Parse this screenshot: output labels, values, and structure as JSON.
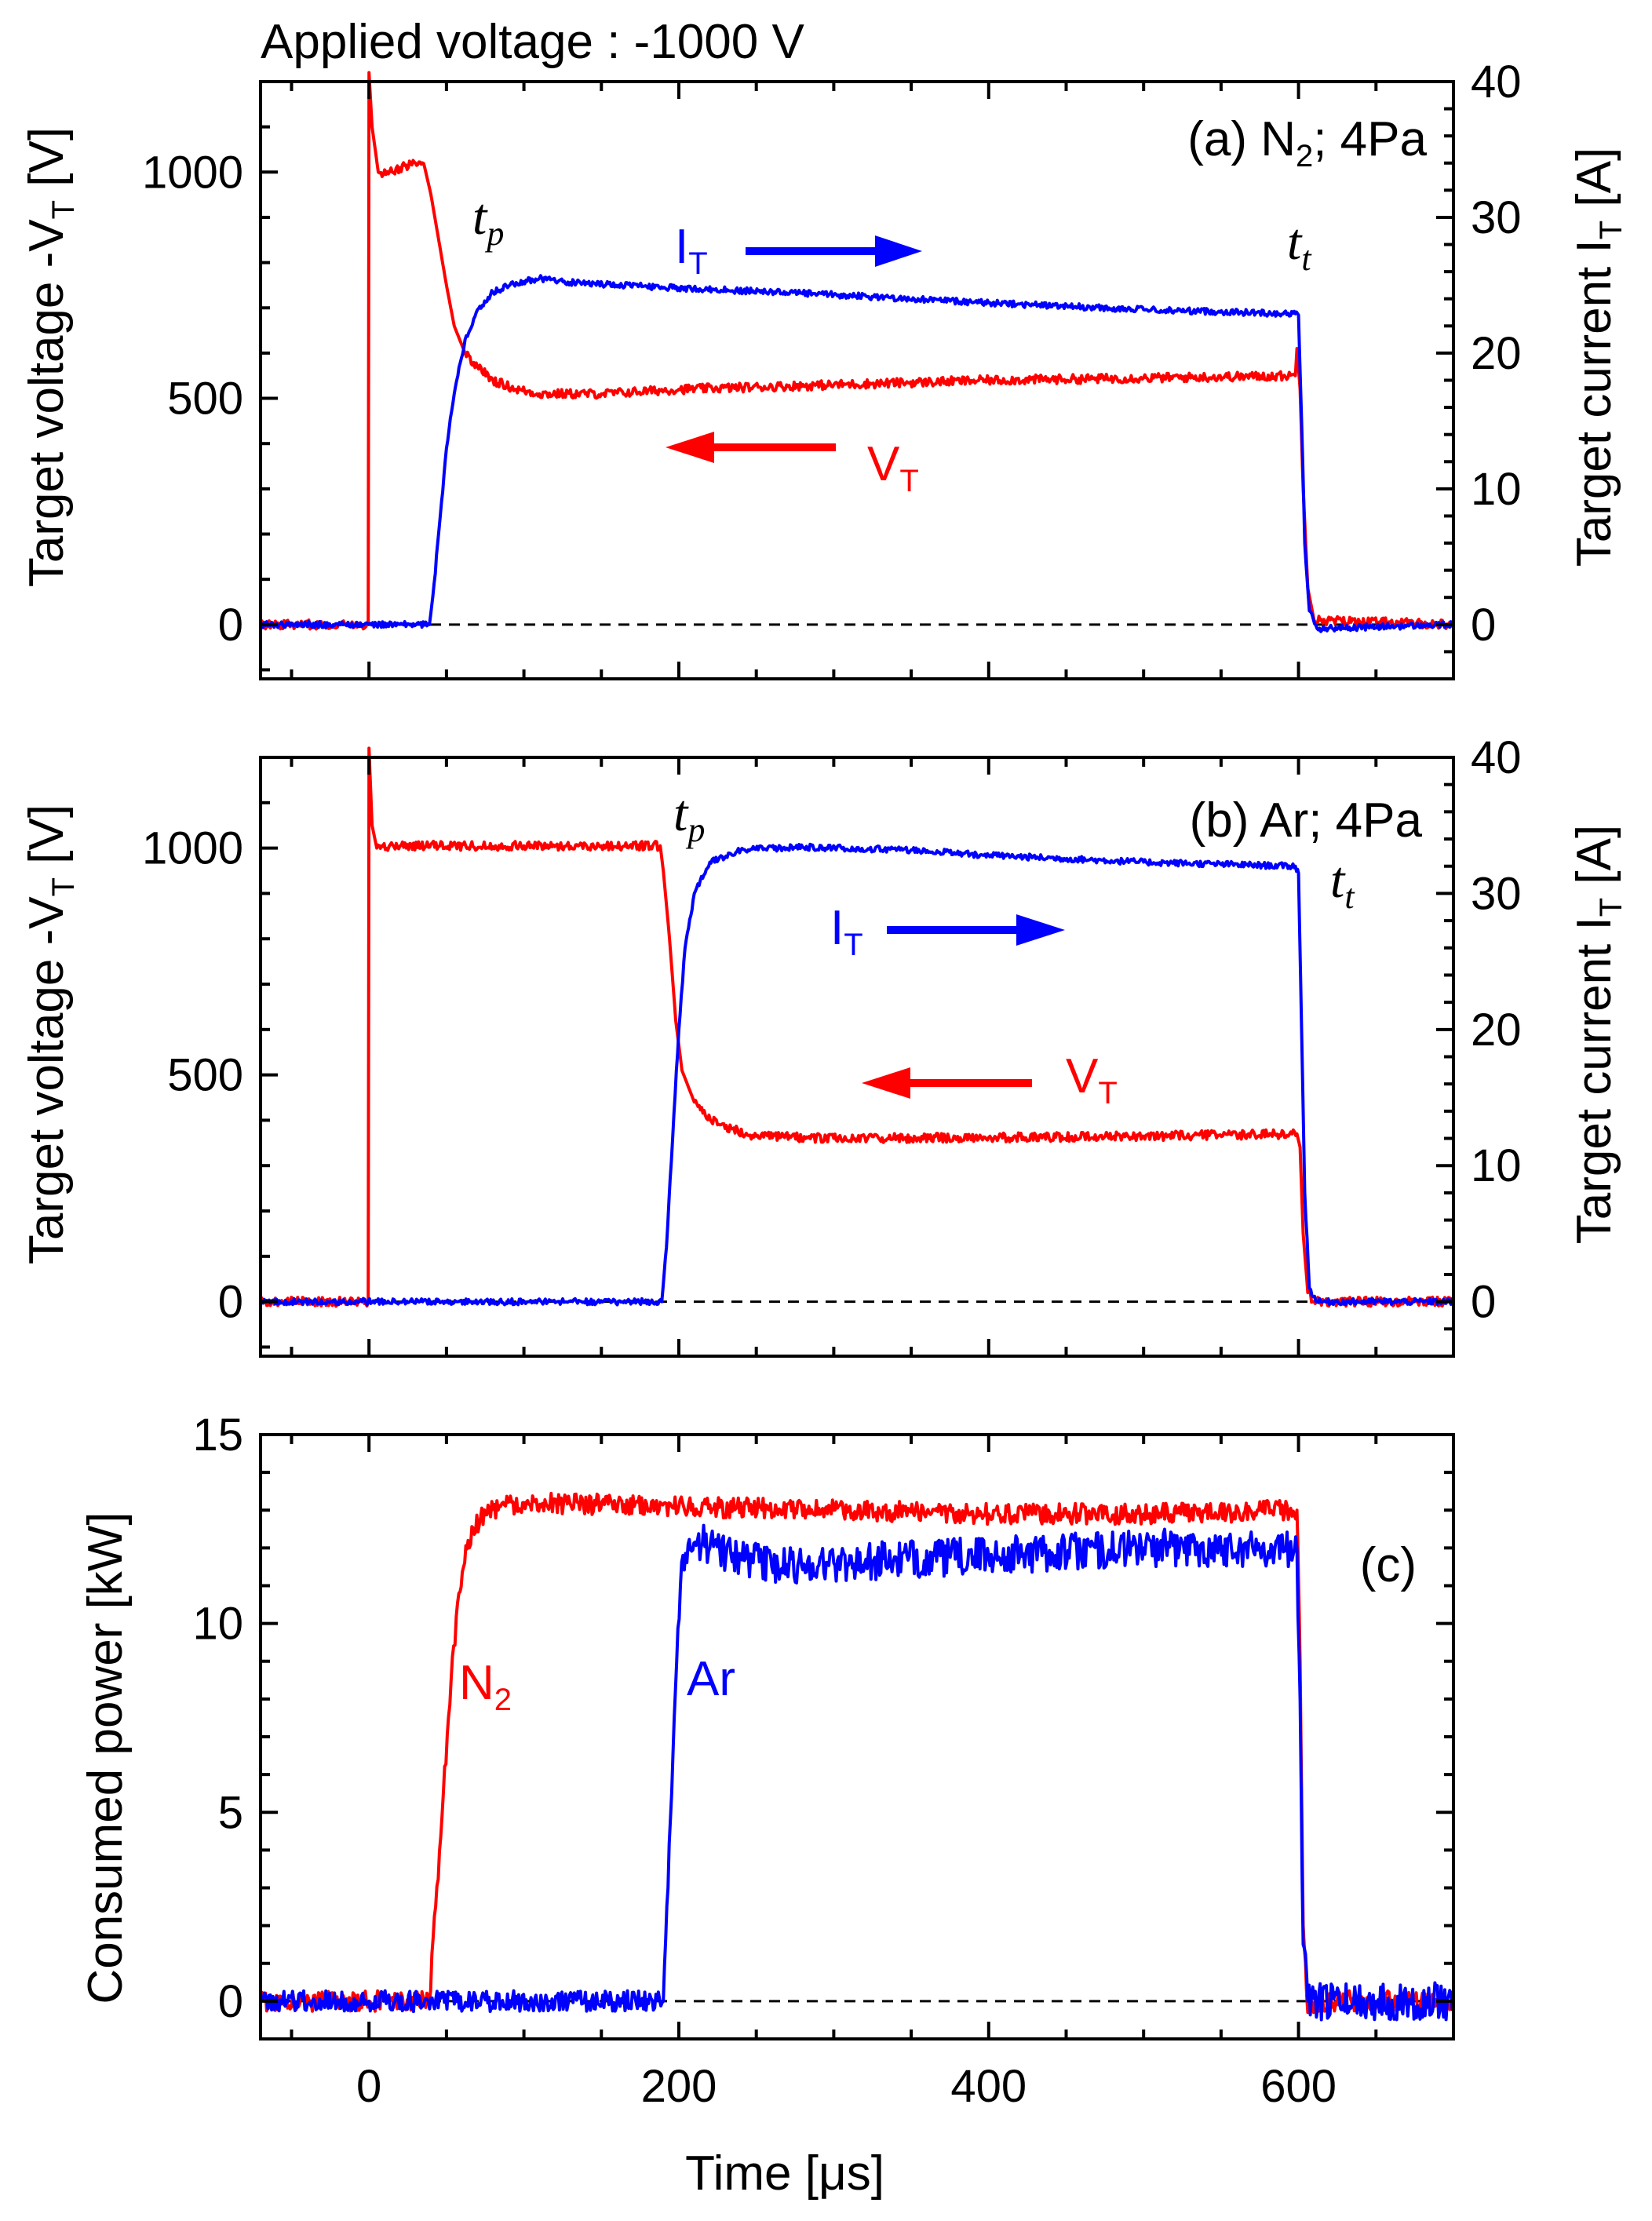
{
  "figure_title": "Applied voltage : -1000 V",
  "colors": {
    "voltage": "#ff0000",
    "current": "#0000ff",
    "n2": "#ff0000",
    "ar": "#0000ff",
    "axes": "#000000"
  },
  "chart_data": [
    {
      "type": "line",
      "panel_label": "(a) N",
      "panel_label_sub": "2",
      "panel_label_rest": "; 4Pa",
      "x_range": [
        -70,
        700
      ],
      "x_ticks": [
        0,
        200,
        400,
        600
      ],
      "y_left": {
        "label": "Target voltage -V",
        "label_sub": "T",
        "label_rest": " [V]",
        "range": [
          -120,
          1200
        ],
        "ticks": [
          0,
          500,
          1000
        ],
        "tick_labels": [
          "0",
          "500",
          "1000"
        ]
      },
      "y_right": {
        "label": "Target current I",
        "label_sub": "T",
        "label_rest": " [A]",
        "range": [
          -4,
          40
        ],
        "ticks": [
          0,
          10,
          20,
          30,
          40
        ],
        "tick_labels": [
          "0",
          "10",
          "20",
          "30",
          "40"
        ]
      },
      "zero_line": true,
      "annotations": {
        "tp": "t",
        "tp_sub": "p",
        "tt": "t",
        "tt_sub": "t",
        "it_label": "I",
        "it_sub": "T",
        "vt_label": "V",
        "vt_sub": "T"
      },
      "series": [
        {
          "name": "V_T",
          "axis": "left",
          "color": "#ff0000",
          "points": [
            [
              -70,
              0
            ],
            [
              -0.5,
              0
            ],
            [
              0,
              1220
            ],
            [
              2,
              1100
            ],
            [
              6,
              1000
            ],
            [
              15,
              1000
            ],
            [
              20,
              1010
            ],
            [
              30,
              1020
            ],
            [
              36,
              1010
            ],
            [
              40,
              950
            ],
            [
              45,
              850
            ],
            [
              50,
              750
            ],
            [
              55,
              660
            ],
            [
              62,
              600
            ],
            [
              70,
              570
            ],
            [
              80,
              540
            ],
            [
              95,
              520
            ],
            [
              110,
              510
            ],
            [
              150,
              510
            ],
            [
              200,
              520
            ],
            [
              300,
              530
            ],
            [
              400,
              540
            ],
            [
              500,
              545
            ],
            [
              598,
              550
            ],
            [
              599,
              610
            ],
            [
              601,
              520
            ],
            [
              603,
              300
            ],
            [
              606,
              80
            ],
            [
              610,
              10
            ],
            [
              700,
              0
            ]
          ]
        },
        {
          "name": "I_T",
          "axis": "right",
          "color": "#0000ff",
          "points": [
            [
              -70,
              0
            ],
            [
              0,
              0
            ],
            [
              39,
              0
            ],
            [
              42,
              3
            ],
            [
              46,
              8
            ],
            [
              50,
              13
            ],
            [
              55,
              17
            ],
            [
              62,
              21
            ],
            [
              70,
              23.2
            ],
            [
              80,
              24.5
            ],
            [
              95,
              25.2
            ],
            [
              110,
              25.5
            ],
            [
              130,
              25.2
            ],
            [
              200,
              24.8
            ],
            [
              300,
              24.3
            ],
            [
              400,
              23.7
            ],
            [
              500,
              23.2
            ],
            [
              598,
              22.9
            ],
            [
              600,
              22.8
            ],
            [
              602,
              15
            ],
            [
              604,
              6
            ],
            [
              607,
              1
            ],
            [
              612,
              -0.3
            ],
            [
              700,
              0
            ]
          ]
        }
      ]
    },
    {
      "type": "line",
      "panel_label": "(b) Ar; 4Pa",
      "x_range": [
        -70,
        700
      ],
      "x_ticks": [
        0,
        200,
        400,
        600
      ],
      "y_left": {
        "label": "Target voltage -V",
        "label_sub": "T",
        "label_rest": " [V]",
        "range": [
          -120,
          1200
        ],
        "ticks": [
          0,
          500,
          1000
        ],
        "tick_labels": [
          "0",
          "500",
          "1000"
        ]
      },
      "y_right": {
        "label": "Target current I",
        "label_sub": "T",
        "label_rest": " [A]",
        "range": [
          -4,
          40
        ],
        "ticks": [
          0,
          10,
          20,
          30,
          40
        ],
        "tick_labels": [
          "0",
          "10",
          "20",
          "30",
          "40"
        ]
      },
      "zero_line": true,
      "annotations": {
        "tp": "t",
        "tp_sub": "p",
        "tt": "t",
        "tt_sub": "t",
        "it_label": "I",
        "it_sub": "T",
        "vt_label": "V",
        "vt_sub": "T"
      },
      "series": [
        {
          "name": "V_T",
          "axis": "left",
          "color": "#ff0000",
          "points": [
            [
              -70,
              0
            ],
            [
              -0.5,
              0
            ],
            [
              0,
              1220
            ],
            [
              2,
              1050
            ],
            [
              5,
              1000
            ],
            [
              20,
              1005
            ],
            [
              100,
              1005
            ],
            [
              150,
              1005
            ],
            [
              188,
              1005
            ],
            [
              190,
              950
            ],
            [
              194,
              800
            ],
            [
              198,
              620
            ],
            [
              202,
              510
            ],
            [
              210,
              440
            ],
            [
              225,
              390
            ],
            [
              250,
              365
            ],
            [
              300,
              360
            ],
            [
              400,
              362
            ],
            [
              500,
              365
            ],
            [
              599,
              370
            ],
            [
              601,
              340
            ],
            [
              603,
              150
            ],
            [
              606,
              20
            ],
            [
              610,
              0
            ],
            [
              700,
              0
            ]
          ]
        },
        {
          "name": "I_T",
          "axis": "right",
          "color": "#0000ff",
          "points": [
            [
              -70,
              0
            ],
            [
              189,
              0
            ],
            [
              192,
              4
            ],
            [
              196,
              12
            ],
            [
              200,
              20
            ],
            [
              204,
              26
            ],
            [
              210,
              30
            ],
            [
              220,
              32.3
            ],
            [
              240,
              33.2
            ],
            [
              280,
              33.4
            ],
            [
              350,
              33.2
            ],
            [
              400,
              32.8
            ],
            [
              500,
              32.3
            ],
            [
              598,
              32
            ],
            [
              600,
              31.5
            ],
            [
              602,
              20
            ],
            [
              604,
              8
            ],
            [
              607,
              1
            ],
            [
              612,
              0
            ],
            [
              700,
              0
            ]
          ]
        }
      ]
    },
    {
      "type": "line",
      "panel_label": "(c)",
      "x_range": [
        -70,
        700
      ],
      "x_ticks": [
        0,
        200,
        400,
        600
      ],
      "x_tick_labels": [
        "0",
        "200",
        "400",
        "600"
      ],
      "xlabel": "Time [μs]",
      "y_left": {
        "label": "Consumed power [kW]",
        "range": [
          -1,
          15
        ],
        "ticks": [
          0,
          5,
          10,
          15
        ],
        "tick_labels": [
          "0",
          "5",
          "10",
          "15"
        ]
      },
      "zero_line": true,
      "series_labels": {
        "n2": "N",
        "n2_sub": "2",
        "ar": "Ar"
      },
      "series": [
        {
          "name": "N2",
          "axis": "left",
          "color": "#ff0000",
          "points": [
            [
              -70,
              0
            ],
            [
              0,
              0
            ],
            [
              39,
              0
            ],
            [
              43,
              2.5
            ],
            [
              48,
              5.5
            ],
            [
              53,
              8.5
            ],
            [
              58,
              10.8
            ],
            [
              64,
              12.2
            ],
            [
              72,
              12.8
            ],
            [
              85,
              13.1
            ],
            [
              100,
              13.2
            ],
            [
              200,
              13.1
            ],
            [
              300,
              13.0
            ],
            [
              400,
              12.9
            ],
            [
              500,
              12.9
            ],
            [
              599,
              13.0
            ],
            [
              601,
              9
            ],
            [
              603,
              2
            ],
            [
              606,
              -0.3
            ],
            [
              612,
              0
            ],
            [
              700,
              0
            ]
          ]
        },
        {
          "name": "Ar",
          "axis": "left",
          "color": "#0000ff",
          "points": [
            [
              -70,
              0
            ],
            [
              0,
              0
            ],
            [
              190,
              0
            ],
            [
              193,
              3
            ],
            [
              197,
              7.5
            ],
            [
              201,
              11
            ],
            [
              206,
              12.1
            ],
            [
              212,
              12.2
            ],
            [
              220,
              12
            ],
            [
              260,
              11.5
            ],
            [
              300,
              11.6
            ],
            [
              400,
              11.8
            ],
            [
              500,
              12
            ],
            [
              599,
              12
            ],
            [
              601,
              8
            ],
            [
              603,
              1.5
            ],
            [
              606,
              0
            ],
            [
              700,
              0
            ]
          ]
        }
      ]
    }
  ]
}
